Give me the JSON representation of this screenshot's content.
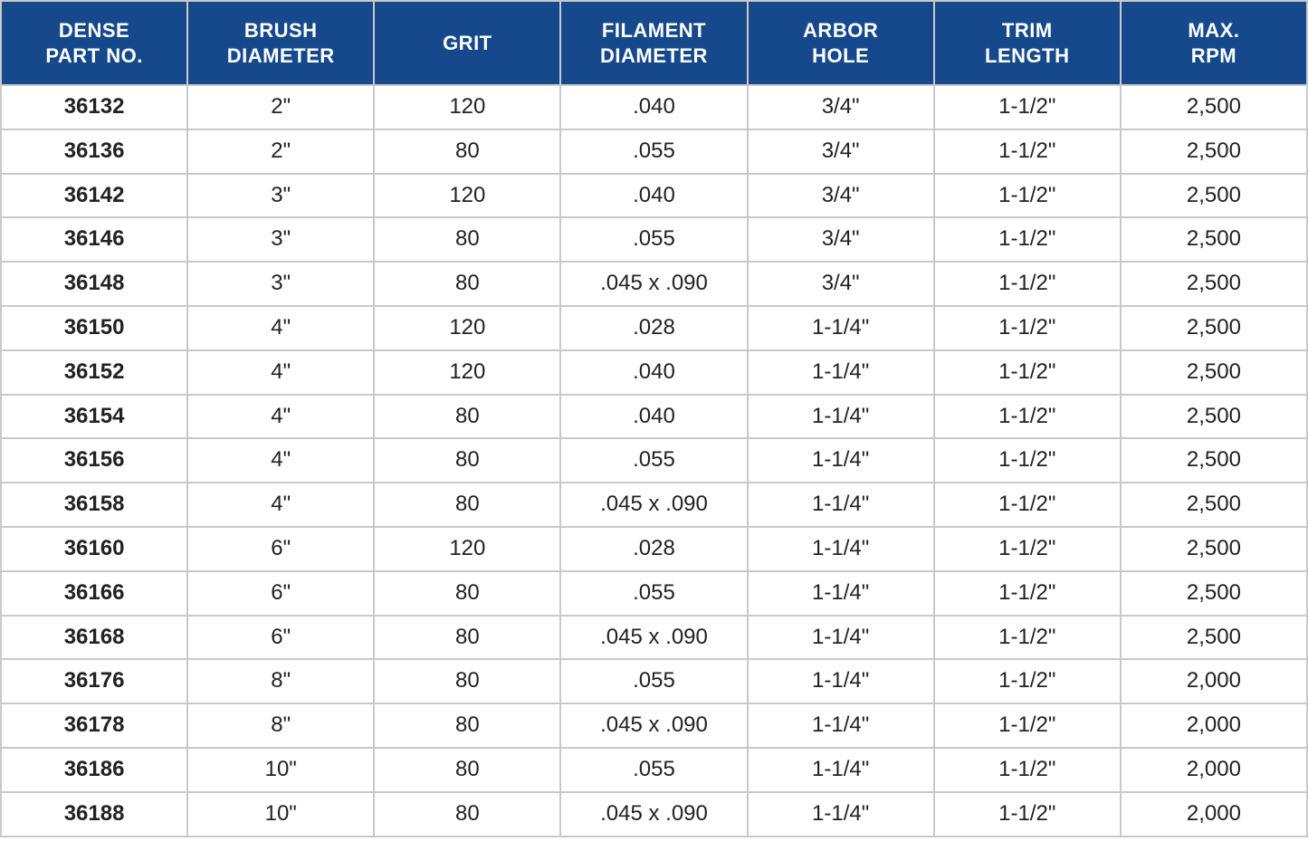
{
  "table": {
    "header_bg": "#16498c",
    "header_fg": "#ffffff",
    "border_color": "#c9c9c9",
    "outer_border_color": "#9e9e9e",
    "row_bg": "#ffffff",
    "text_color": "#222222",
    "header_fontsize": 22,
    "cell_fontsize": 24,
    "columns": [
      {
        "key": "part_no",
        "label_line1": "DENSE",
        "label_line2": "PART NO."
      },
      {
        "key": "brush_dia",
        "label_line1": "BRUSH",
        "label_line2": "DIAMETER"
      },
      {
        "key": "grit",
        "label_line1": "GRIT",
        "label_line2": ""
      },
      {
        "key": "fil_dia",
        "label_line1": "FILAMENT",
        "label_line2": "DIAMETER"
      },
      {
        "key": "arbor",
        "label_line1": "ARBOR",
        "label_line2": "HOLE"
      },
      {
        "key": "trim",
        "label_line1": "TRIM",
        "label_line2": "LENGTH"
      },
      {
        "key": "rpm",
        "label_line1": "MAX.",
        "label_line2": "RPM"
      }
    ],
    "rows": [
      {
        "part_no": "36132",
        "brush_dia": "2\"",
        "grit": "120",
        "fil_dia": ".040",
        "arbor": "3/4\"",
        "trim": "1-1/2\"",
        "rpm": "2,500"
      },
      {
        "part_no": "36136",
        "brush_dia": "2\"",
        "grit": "80",
        "fil_dia": ".055",
        "arbor": "3/4\"",
        "trim": "1-1/2\"",
        "rpm": "2,500"
      },
      {
        "part_no": "36142",
        "brush_dia": "3\"",
        "grit": "120",
        "fil_dia": ".040",
        "arbor": "3/4\"",
        "trim": "1-1/2\"",
        "rpm": "2,500"
      },
      {
        "part_no": "36146",
        "brush_dia": "3\"",
        "grit": "80",
        "fil_dia": ".055",
        "arbor": "3/4\"",
        "trim": "1-1/2\"",
        "rpm": "2,500"
      },
      {
        "part_no": "36148",
        "brush_dia": "3\"",
        "grit": "80",
        "fil_dia": ".045 x .090",
        "arbor": "3/4\"",
        "trim": "1-1/2\"",
        "rpm": "2,500"
      },
      {
        "part_no": "36150",
        "brush_dia": "4\"",
        "grit": "120",
        "fil_dia": ".028",
        "arbor": "1-1/4\"",
        "trim": "1-1/2\"",
        "rpm": "2,500"
      },
      {
        "part_no": "36152",
        "brush_dia": "4\"",
        "grit": "120",
        "fil_dia": ".040",
        "arbor": "1-1/4\"",
        "trim": "1-1/2\"",
        "rpm": "2,500"
      },
      {
        "part_no": "36154",
        "brush_dia": "4\"",
        "grit": "80",
        "fil_dia": ".040",
        "arbor": "1-1/4\"",
        "trim": "1-1/2\"",
        "rpm": "2,500"
      },
      {
        "part_no": "36156",
        "brush_dia": "4\"",
        "grit": "80",
        "fil_dia": ".055",
        "arbor": "1-1/4\"",
        "trim": "1-1/2\"",
        "rpm": "2,500"
      },
      {
        "part_no": "36158",
        "brush_dia": "4\"",
        "grit": "80",
        "fil_dia": ".045 x .090",
        "arbor": "1-1/4\"",
        "trim": "1-1/2\"",
        "rpm": "2,500"
      },
      {
        "part_no": "36160",
        "brush_dia": "6\"",
        "grit": "120",
        "fil_dia": ".028",
        "arbor": "1-1/4\"",
        "trim": "1-1/2\"",
        "rpm": "2,500"
      },
      {
        "part_no": "36166",
        "brush_dia": "6\"",
        "grit": "80",
        "fil_dia": ".055",
        "arbor": "1-1/4\"",
        "trim": "1-1/2\"",
        "rpm": "2,500"
      },
      {
        "part_no": "36168",
        "brush_dia": "6\"",
        "grit": "80",
        "fil_dia": ".045 x .090",
        "arbor": "1-1/4\"",
        "trim": "1-1/2\"",
        "rpm": "2,500"
      },
      {
        "part_no": "36176",
        "brush_dia": "8\"",
        "grit": "80",
        "fil_dia": ".055",
        "arbor": "1-1/4\"",
        "trim": "1-1/2\"",
        "rpm": "2,000"
      },
      {
        "part_no": "36178",
        "brush_dia": "8\"",
        "grit": "80",
        "fil_dia": ".045 x .090",
        "arbor": "1-1/4\"",
        "trim": "1-1/2\"",
        "rpm": "2,000"
      },
      {
        "part_no": "36186",
        "brush_dia": "10\"",
        "grit": "80",
        "fil_dia": ".055",
        "arbor": "1-1/4\"",
        "trim": "1-1/2\"",
        "rpm": "2,000"
      },
      {
        "part_no": "36188",
        "brush_dia": "10\"",
        "grit": "80",
        "fil_dia": ".045 x .090",
        "arbor": "1-1/4\"",
        "trim": "1-1/2\"",
        "rpm": "2,000"
      }
    ]
  }
}
